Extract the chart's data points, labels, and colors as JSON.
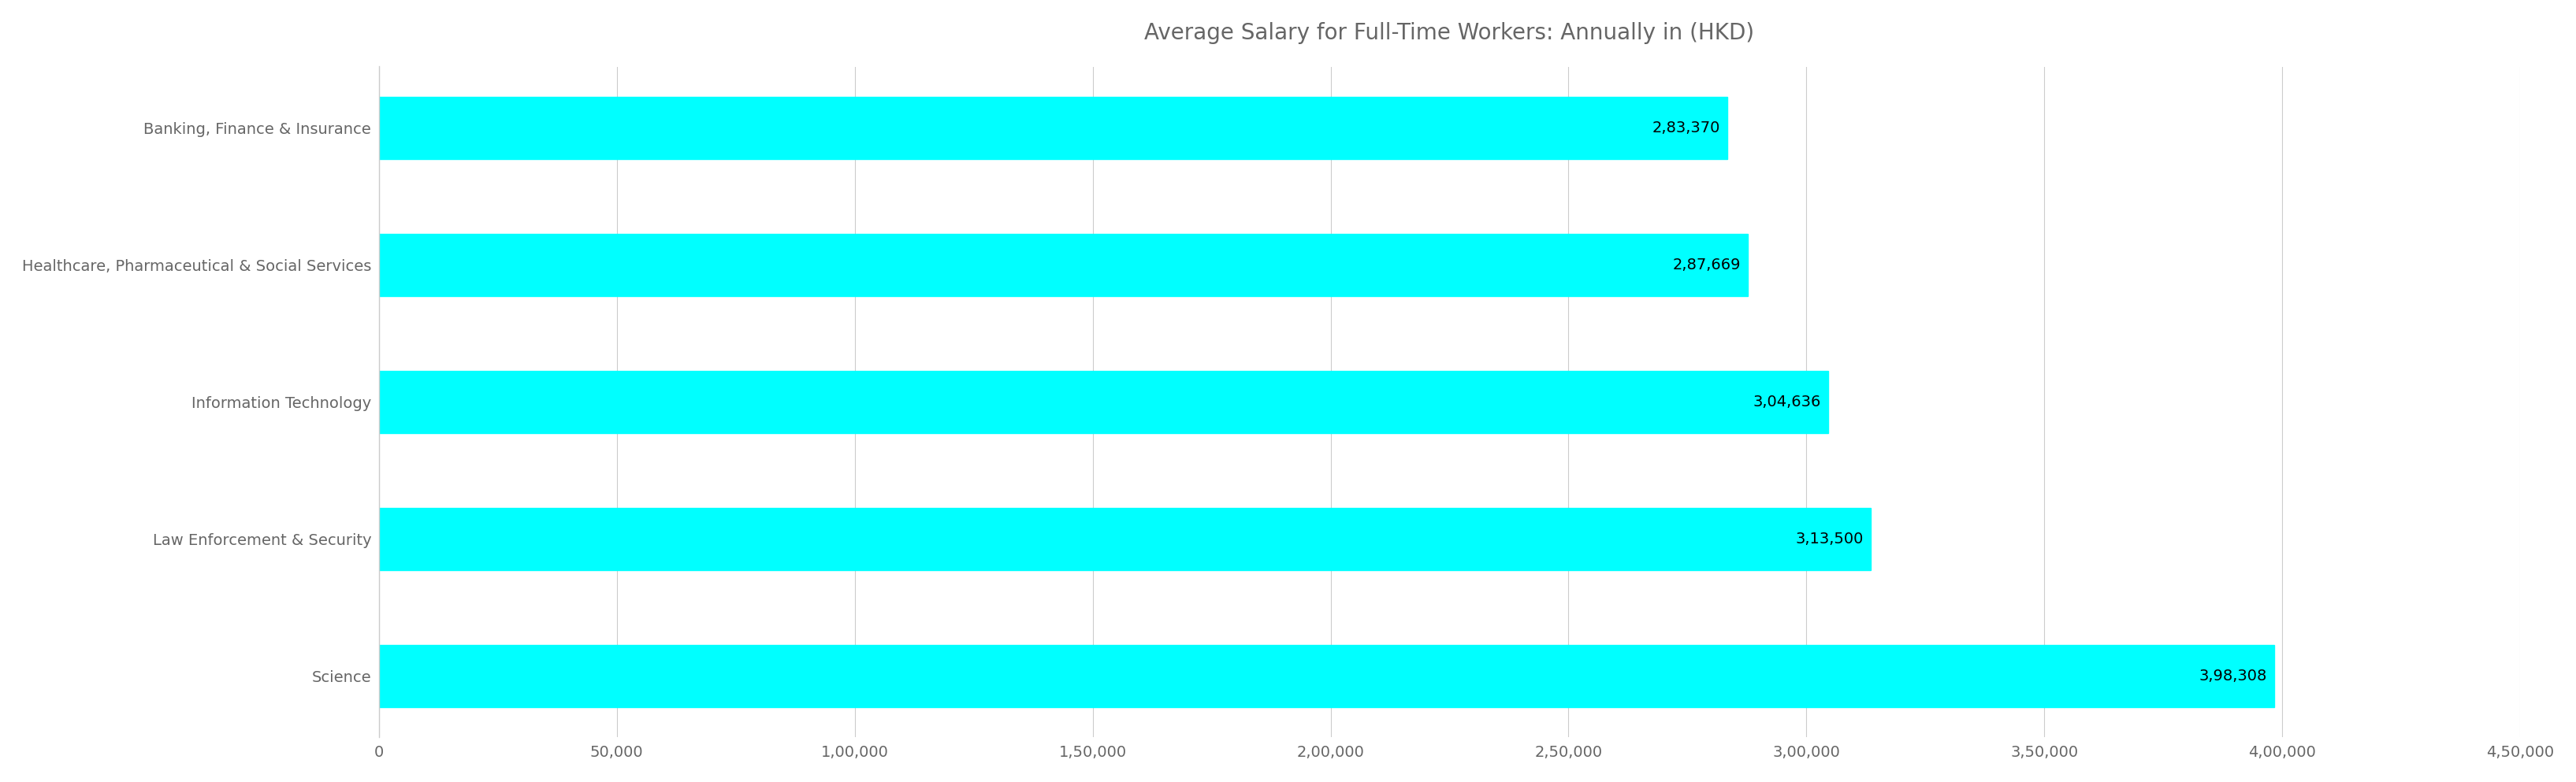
{
  "title": "Average Salary for Full-Time Workers: Annually in (HKD)",
  "categories": [
    "Banking, Finance & Insurance",
    "Healthcare, Pharmaceutical & Social Services",
    "Information Technology",
    "Law Enforcement & Security",
    "Science"
  ],
  "values": [
    283370,
    287669,
    304636,
    313500,
    398308
  ],
  "bar_color": "#00FFFF",
  "label_texts": [
    "2,83,370",
    "2,87,669",
    "3,04,636",
    "3,13,500",
    "3,98,308"
  ],
  "xlim": [
    0,
    450000
  ],
  "xticks": [
    0,
    50000,
    100000,
    150000,
    200000,
    250000,
    300000,
    350000,
    400000,
    450000
  ],
  "xtick_labels": [
    "0",
    "50,000",
    "1,00,000",
    "1,50,000",
    "2,00,000",
    "2,50,000",
    "3,00,000",
    "3,50,000",
    "4,00,000",
    "4,50,000"
  ],
  "title_fontsize": 20,
  "label_fontsize": 14,
  "ylabel_fontsize": 14,
  "xtick_fontsize": 14,
  "bar_height": 0.45,
  "background_color": "#ffffff",
  "grid_color": "#cccccc",
  "text_color": "#666666"
}
